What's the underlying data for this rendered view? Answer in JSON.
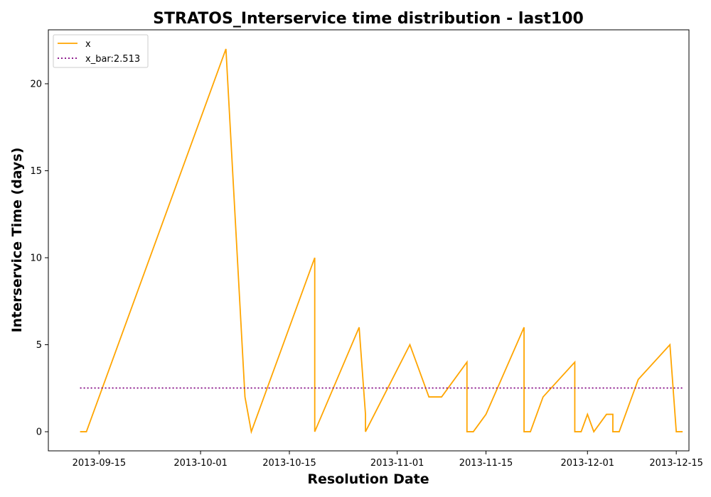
{
  "chart_data": {
    "type": "line",
    "title": "STRATOS_Interservice time distribution - last100",
    "xlabel": "Resolution Date",
    "ylabel": "Interservice Time (days)",
    "xlim": [
      "2013-09-07",
      "2013-12-17"
    ],
    "ylim": [
      -1.1,
      23.1
    ],
    "x_ticks": [
      "2013-09-15",
      "2013-10-01",
      "2013-10-15",
      "2013-11-01",
      "2013-11-15",
      "2013-12-01",
      "2013-12-15"
    ],
    "y_ticks": [
      0,
      5,
      10,
      15,
      20
    ],
    "legend_position": "top-left",
    "grid": false,
    "series": [
      {
        "name": "x",
        "color": "#FFA500",
        "style": "solid",
        "points": [
          [
            "2013-09-12",
            0
          ],
          [
            "2013-09-13",
            0
          ],
          [
            "2013-10-05",
            22
          ],
          [
            "2013-10-08",
            2
          ],
          [
            "2013-10-09",
            0
          ],
          [
            "2013-10-19",
            10
          ],
          [
            "2013-10-19",
            0
          ],
          [
            "2013-10-26",
            6
          ],
          [
            "2013-10-27",
            1
          ],
          [
            "2013-10-27",
            0
          ],
          [
            "2013-11-03",
            5
          ],
          [
            "2013-11-06",
            2
          ],
          [
            "2013-11-08",
            2
          ],
          [
            "2013-11-12",
            4
          ],
          [
            "2013-11-12",
            0
          ],
          [
            "2013-11-13",
            0
          ],
          [
            "2013-11-15",
            1
          ],
          [
            "2013-11-21",
            6
          ],
          [
            "2013-11-21",
            0
          ],
          [
            "2013-11-22",
            0
          ],
          [
            "2013-11-24",
            2
          ],
          [
            "2013-11-29",
            4
          ],
          [
            "2013-11-29",
            0
          ],
          [
            "2013-11-30",
            0
          ],
          [
            "2013-12-01",
            1
          ],
          [
            "2013-12-02",
            0
          ],
          [
            "2013-12-04",
            1
          ],
          [
            "2013-12-05",
            1
          ],
          [
            "2013-12-05",
            0
          ],
          [
            "2013-12-06",
            0
          ],
          [
            "2013-12-09",
            3
          ],
          [
            "2013-12-14",
            5
          ],
          [
            "2013-12-15",
            0
          ],
          [
            "2013-12-16",
            0
          ]
        ]
      },
      {
        "name": "x_bar:2.513",
        "color": "#800080",
        "style": "dotted",
        "points": [
          [
            "2013-09-12",
            2.513
          ],
          [
            "2013-12-16",
            2.513
          ]
        ]
      }
    ]
  }
}
